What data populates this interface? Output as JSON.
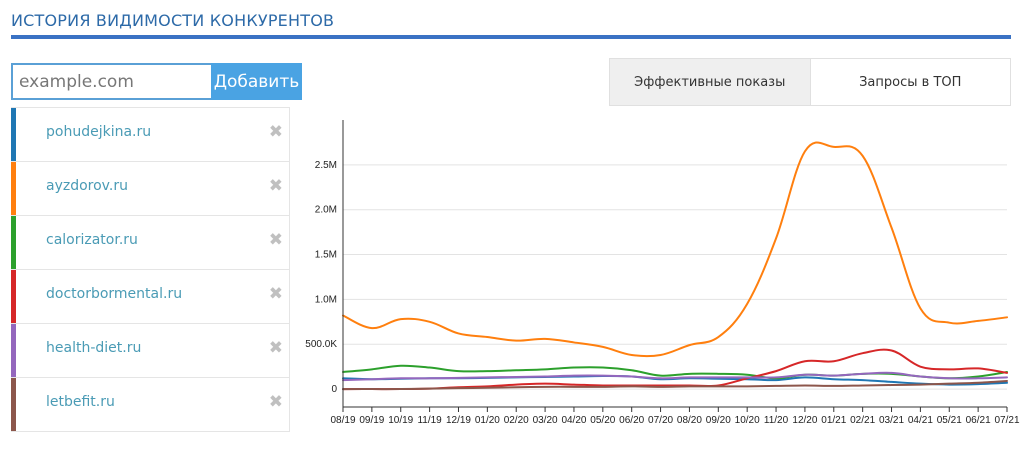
{
  "header": {
    "title": "ИСТОРИЯ ВИДИМОСТИ КОНКУРЕНТОВ"
  },
  "add_form": {
    "placeholder": "example.com",
    "button_label": "Добавить"
  },
  "sites": [
    {
      "domain": "pohudejkina.ru",
      "color": "#1f77b4",
      "remove_glyph": "✖"
    },
    {
      "domain": "ayzdorov.ru",
      "color": "#ff7f0e",
      "remove_glyph": "✖"
    },
    {
      "domain": "calorizator.ru",
      "color": "#2ca02c",
      "remove_glyph": "✖"
    },
    {
      "domain": "doctorbormental.ru",
      "color": "#d62728",
      "remove_glyph": "✖"
    },
    {
      "domain": "health-diet.ru",
      "color": "#9467bd",
      "remove_glyph": "✖"
    },
    {
      "domain": "letbefit.ru",
      "color": "#8c564b",
      "remove_glyph": "✖"
    }
  ],
  "tabs": [
    {
      "label": "Эффективные показы",
      "active": true
    },
    {
      "label": "Запросы в ТОП",
      "active": false
    }
  ],
  "chart_data": {
    "type": "line",
    "title": "",
    "xlabel": "",
    "ylabel": "",
    "ylim": [
      -200000,
      3000000
    ],
    "y_ticks": [
      0,
      500000,
      1000000,
      1500000,
      2000000,
      2500000
    ],
    "y_tick_labels": [
      "0",
      "500.0K",
      "1.0M",
      "1.5M",
      "2.0M",
      "2.5M"
    ],
    "grid": true,
    "legend": "left-list",
    "categories": [
      "08/19",
      "09/19",
      "10/19",
      "11/19",
      "12/19",
      "01/20",
      "02/20",
      "03/20",
      "04/20",
      "05/20",
      "06/20",
      "07/20",
      "08/20",
      "09/20",
      "10/20",
      "11/20",
      "12/20",
      "01/21",
      "02/21",
      "03/21",
      "04/21",
      "05/21",
      "06/21",
      "07/21"
    ],
    "series": [
      {
        "name": "pohudejkina.ru",
        "color": "#1f77b4",
        "values": [
          120000,
          110000,
          115000,
          120000,
          120000,
          125000,
          130000,
          135000,
          140000,
          145000,
          140000,
          110000,
          120000,
          115000,
          110000,
          100000,
          130000,
          110000,
          100000,
          80000,
          60000,
          50000,
          55000,
          70000
        ]
      },
      {
        "name": "ayzdorov.ru",
        "color": "#ff7f0e",
        "values": [
          820000,
          680000,
          780000,
          750000,
          620000,
          580000,
          540000,
          560000,
          520000,
          470000,
          380000,
          380000,
          490000,
          580000,
          950000,
          1680000,
          2650000,
          2700000,
          2600000,
          1800000,
          900000,
          740000,
          760000,
          800000
        ]
      },
      {
        "name": "calorizator.ru",
        "color": "#2ca02c",
        "values": [
          190000,
          220000,
          260000,
          240000,
          200000,
          200000,
          210000,
          220000,
          240000,
          240000,
          210000,
          150000,
          170000,
          170000,
          160000,
          120000,
          160000,
          150000,
          170000,
          170000,
          140000,
          120000,
          140000,
          190000
        ]
      },
      {
        "name": "doctorbormental.ru",
        "color": "#d62728",
        "values": [
          0,
          0,
          0,
          5000,
          20000,
          30000,
          50000,
          60000,
          50000,
          40000,
          40000,
          40000,
          40000,
          40000,
          120000,
          200000,
          310000,
          310000,
          400000,
          430000,
          250000,
          220000,
          230000,
          180000
        ]
      },
      {
        "name": "health-diet.ru",
        "color": "#9467bd",
        "values": [
          100000,
          110000,
          120000,
          120000,
          125000,
          130000,
          135000,
          140000,
          150000,
          150000,
          140000,
          120000,
          130000,
          130000,
          130000,
          130000,
          160000,
          150000,
          170000,
          180000,
          140000,
          120000,
          120000,
          130000
        ]
      },
      {
        "name": "letbefit.ru",
        "color": "#8c564b",
        "values": [
          0,
          0,
          0,
          5000,
          10000,
          15000,
          20000,
          25000,
          25000,
          25000,
          30000,
          25000,
          30000,
          30000,
          30000,
          35000,
          40000,
          35000,
          40000,
          45000,
          50000,
          60000,
          70000,
          90000
        ]
      }
    ]
  }
}
